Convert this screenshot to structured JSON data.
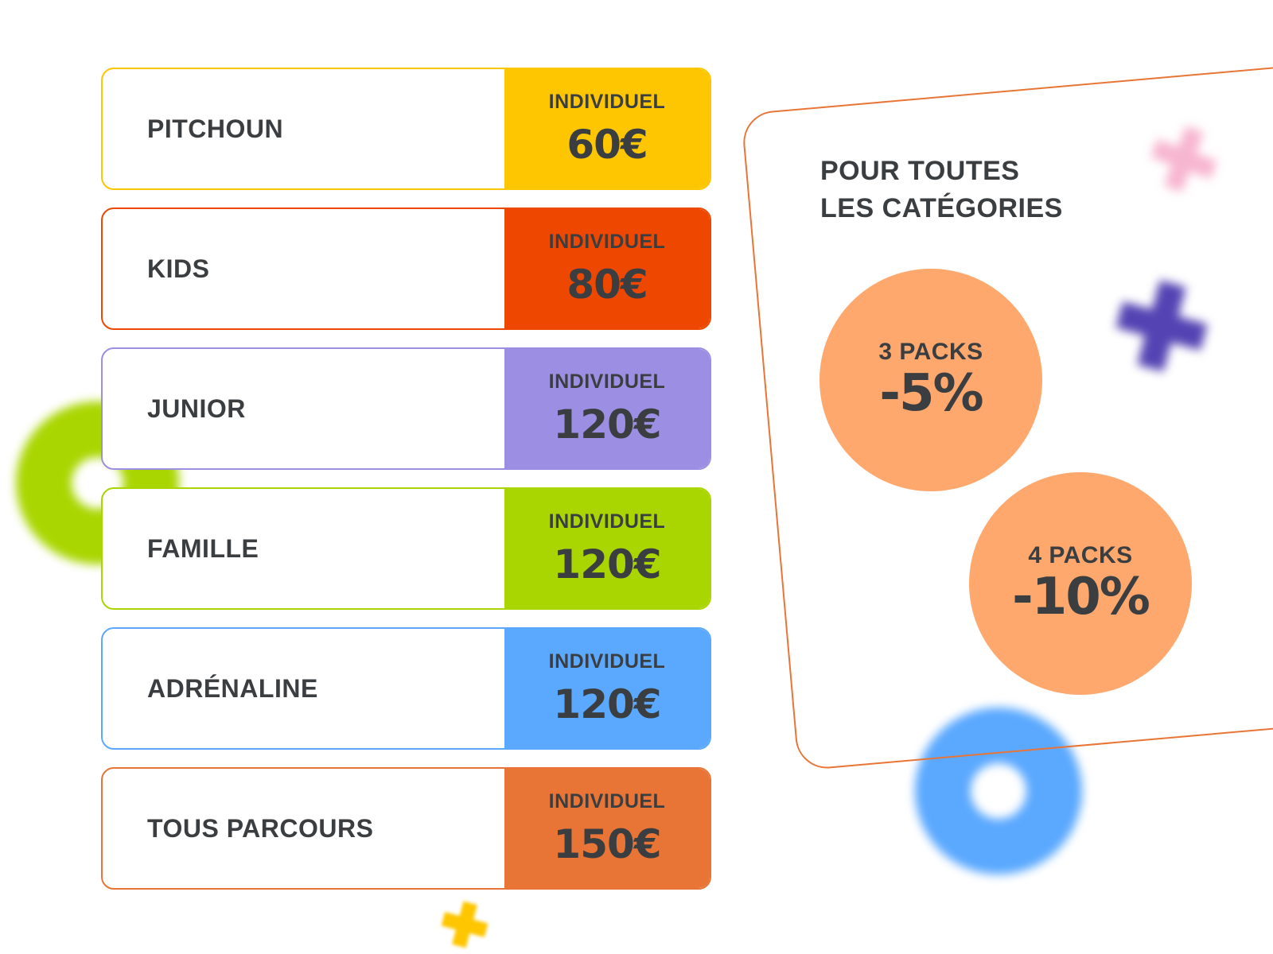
{
  "cards": [
    {
      "name": "PITCHOUN",
      "label": "INDIVIDUEL",
      "price": "60€",
      "color": "#FEC600"
    },
    {
      "name": "KIDS",
      "label": "INDIVIDUEL",
      "price": "80€",
      "color": "#EE4700"
    },
    {
      "name": "JUNIOR",
      "label": "INDIVIDUEL",
      "price": "120€",
      "color": "#9C8FE3"
    },
    {
      "name": "FAMILLE",
      "label": "INDIVIDUEL",
      "price": "120€",
      "color": "#A9D600"
    },
    {
      "name": "ADRÉNALINE",
      "label": "INDIVIDUEL",
      "price": "120€",
      "color": "#5AA8FF"
    },
    {
      "name": "TOUS PARCOURS",
      "label": "INDIVIDUEL",
      "price": "150€",
      "color": "#E87536"
    }
  ],
  "discounts": {
    "title_line1": "POUR TOUTES",
    "title_line2": "LES CATÉGORIES",
    "items": [
      {
        "packs": "3 PACKS",
        "percent": "-5%"
      },
      {
        "packs": "4 PACKS",
        "percent": "-10%"
      }
    ],
    "accent": "#FEA86E",
    "border": "#E87536"
  }
}
